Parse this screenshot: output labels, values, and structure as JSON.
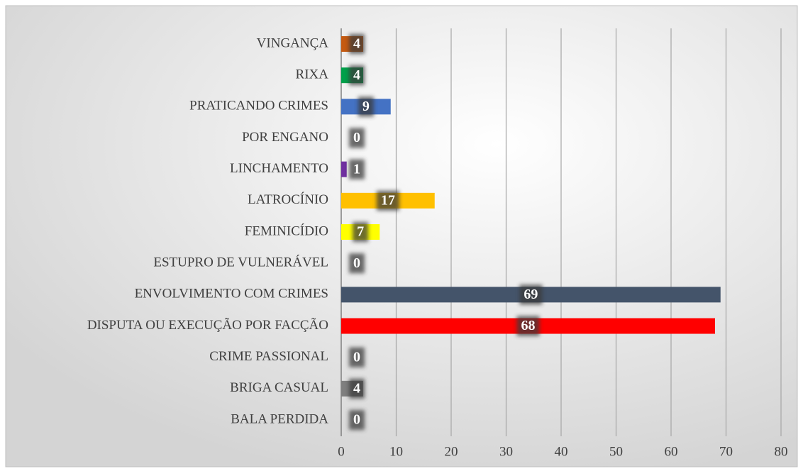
{
  "chart_data": {
    "type": "bar",
    "orientation": "horizontal",
    "categories": [
      "VINGANÇA",
      "RIXA",
      "PRATICANDO CRIMES",
      "POR ENGANO",
      "LINCHAMENTO",
      "LATROCÍNIO",
      "FEMINICÍDIO",
      "ESTUPRO DE VULNERÁVEL",
      "ENVOLVIMENTO COM CRIMES",
      "DISPUTA OU EXECUÇÃO POR FACÇÃO",
      "CRIME PASSIONAL",
      "BRIGA CASUAL",
      "BALA PERDIDA"
    ],
    "values": [
      4,
      4,
      9,
      0,
      1,
      17,
      7,
      0,
      69,
      68,
      0,
      4,
      0
    ],
    "colors": [
      "#c55a11",
      "#00a04a",
      "#4472c4",
      "#a5a5a5",
      "#7030a0",
      "#ffc000",
      "#ffff00",
      "#a5a5a5",
      "#44546a",
      "#ff0000",
      "#a5a5a5",
      "#7f7f7f",
      "#a5a5a5"
    ],
    "xlim": [
      0,
      80
    ],
    "xticks": [
      0,
      10,
      20,
      30,
      40,
      50,
      60,
      70,
      80
    ],
    "grid": true
  }
}
